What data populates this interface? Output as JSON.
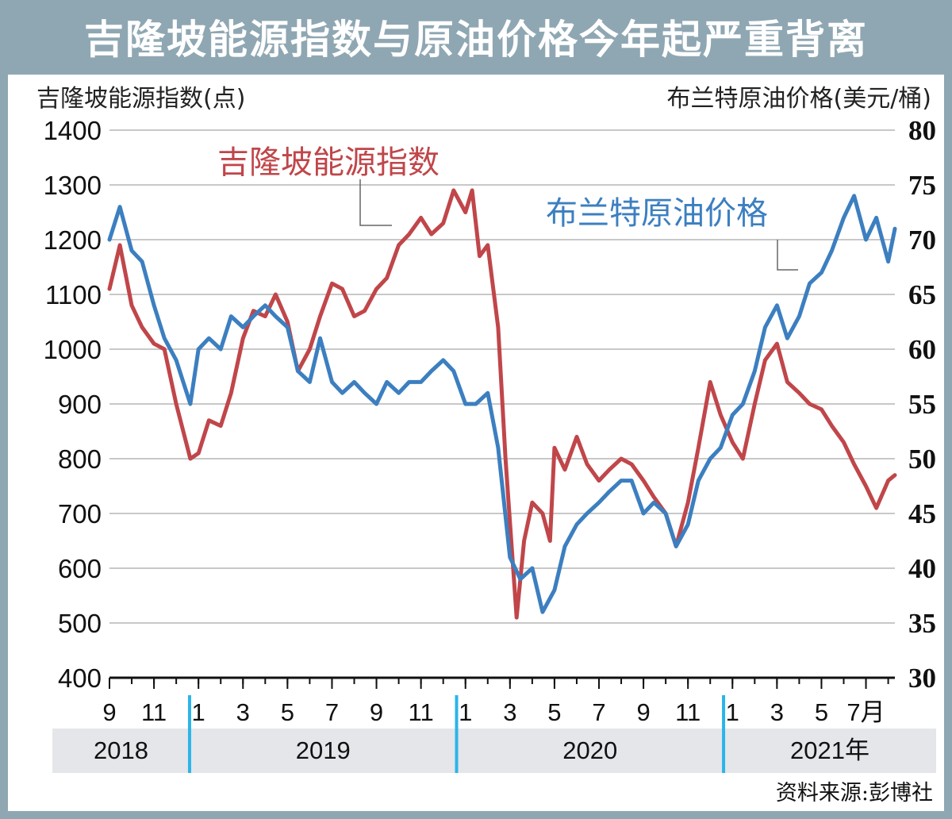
{
  "title": "吉隆坡能源指数与原油价格今年起严重背离",
  "colors": {
    "frame": "#8fa7b3",
    "energy_index": "#c0464a",
    "brent": "#3c7fc0",
    "year_band": "#e4e6ea",
    "year_divider": "#2bb5e8"
  },
  "chart_data": {
    "type": "line",
    "left_axis_label": "吉隆坡能源指数(点)",
    "right_axis_label": "布兰特原油价格(美元/桶)",
    "left_ticks": [
      "1400",
      "1300",
      "1200",
      "1100",
      "1000",
      "900",
      "800",
      "700",
      "600",
      "500",
      "400"
    ],
    "right_ticks": [
      "80",
      "75",
      "70",
      "65",
      "60",
      "55",
      "50",
      "45",
      "40",
      "35",
      "30"
    ],
    "ylim_left": [
      400,
      1400
    ],
    "ylim_right": [
      30,
      80
    ],
    "grid": true,
    "x_months": [
      "9",
      "11",
      "1",
      "3",
      "5",
      "7",
      "9",
      "11",
      "1",
      "3",
      "5",
      "7",
      "9",
      "11",
      "1",
      "3",
      "5",
      "7月"
    ],
    "years": [
      "2018",
      "2019",
      "2020",
      "2021年"
    ],
    "series": [
      {
        "name": "吉隆坡能源指数",
        "axis": "left",
        "points": [
          [
            "2018-09",
            1110
          ],
          [
            "2018-09-15",
            1190
          ],
          [
            "2018-10",
            1080
          ],
          [
            "2018-10-15",
            1040
          ],
          [
            "2018-11",
            1010
          ],
          [
            "2018-11-15",
            1000
          ],
          [
            "2018-12",
            900
          ],
          [
            "2018-12-20",
            800
          ],
          [
            "2019-01",
            810
          ],
          [
            "2019-01-15",
            870
          ],
          [
            "2019-02",
            860
          ],
          [
            "2019-02-15",
            920
          ],
          [
            "2019-03",
            1020
          ],
          [
            "2019-03-15",
            1070
          ],
          [
            "2019-04",
            1060
          ],
          [
            "2019-04-15",
            1100
          ],
          [
            "2019-05",
            1050
          ],
          [
            "2019-05-15",
            960
          ],
          [
            "2019-06",
            1000
          ],
          [
            "2019-06-15",
            1060
          ],
          [
            "2019-07",
            1120
          ],
          [
            "2019-07-15",
            1110
          ],
          [
            "2019-08",
            1060
          ],
          [
            "2019-08-15",
            1070
          ],
          [
            "2019-09",
            1110
          ],
          [
            "2019-09-15",
            1130
          ],
          [
            "2019-10",
            1190
          ],
          [
            "2019-10-15",
            1210
          ],
          [
            "2019-11",
            1240
          ],
          [
            "2019-11-15",
            1210
          ],
          [
            "2019-12",
            1230
          ],
          [
            "2019-12-15",
            1290
          ],
          [
            "2020-01",
            1250
          ],
          [
            "2020-01-10",
            1290
          ],
          [
            "2020-01-20",
            1170
          ],
          [
            "2020-02",
            1190
          ],
          [
            "2020-02-15",
            1040
          ],
          [
            "2020-02-25",
            800
          ],
          [
            "2020-03-10",
            510
          ],
          [
            "2020-03-20",
            650
          ],
          [
            "2020-04",
            720
          ],
          [
            "2020-04-15",
            700
          ],
          [
            "2020-04-25",
            650
          ],
          [
            "2020-05",
            820
          ],
          [
            "2020-05-15",
            780
          ],
          [
            "2020-06",
            840
          ],
          [
            "2020-06-15",
            790
          ],
          [
            "2020-07",
            760
          ],
          [
            "2020-07-15",
            780
          ],
          [
            "2020-08",
            800
          ],
          [
            "2020-08-15",
            790
          ],
          [
            "2020-09",
            760
          ],
          [
            "2020-09-15",
            730
          ],
          [
            "2020-10",
            700
          ],
          [
            "2020-10-15",
            640
          ],
          [
            "2020-11",
            720
          ],
          [
            "2020-11-15",
            820
          ],
          [
            "2020-12",
            940
          ],
          [
            "2020-12-15",
            880
          ],
          [
            "2021-01",
            830
          ],
          [
            "2021-01-15",
            800
          ],
          [
            "2021-02",
            900
          ],
          [
            "2021-02-15",
            980
          ],
          [
            "2021-03",
            1010
          ],
          [
            "2021-03-15",
            940
          ],
          [
            "2021-04",
            920
          ],
          [
            "2021-04-15",
            900
          ],
          [
            "2021-05",
            890
          ],
          [
            "2021-05-15",
            860
          ],
          [
            "2021-06",
            830
          ],
          [
            "2021-06-15",
            790
          ],
          [
            "2021-07",
            750
          ],
          [
            "2021-07-15",
            710
          ],
          [
            "2021-08",
            760
          ],
          [
            "2021-08-10",
            770
          ]
        ]
      },
      {
        "name": "布兰特原油价格",
        "axis": "right",
        "points": [
          [
            "2018-09",
            70
          ],
          [
            "2018-09-15",
            73
          ],
          [
            "2018-10",
            69
          ],
          [
            "2018-10-15",
            68
          ],
          [
            "2018-11",
            64
          ],
          [
            "2018-11-15",
            61
          ],
          [
            "2018-12",
            59
          ],
          [
            "2018-12-20",
            55
          ],
          [
            "2019-01",
            60
          ],
          [
            "2019-01-15",
            61
          ],
          [
            "2019-02",
            60
          ],
          [
            "2019-02-15",
            63
          ],
          [
            "2019-03",
            62
          ],
          [
            "2019-03-15",
            63
          ],
          [
            "2019-04",
            64
          ],
          [
            "2019-04-15",
            63
          ],
          [
            "2019-05",
            62
          ],
          [
            "2019-05-15",
            58
          ],
          [
            "2019-06",
            57
          ],
          [
            "2019-06-15",
            61
          ],
          [
            "2019-07",
            57
          ],
          [
            "2019-07-15",
            56
          ],
          [
            "2019-08",
            57
          ],
          [
            "2019-08-15",
            56
          ],
          [
            "2019-09",
            55
          ],
          [
            "2019-09-15",
            57
          ],
          [
            "2019-10",
            56
          ],
          [
            "2019-10-15",
            57
          ],
          [
            "2019-11",
            57
          ],
          [
            "2019-11-15",
            58
          ],
          [
            "2019-12",
            59
          ],
          [
            "2019-12-15",
            58
          ],
          [
            "2020-01",
            55
          ],
          [
            "2020-01-15",
            55
          ],
          [
            "2020-02",
            56
          ],
          [
            "2020-02-15",
            51
          ],
          [
            "2020-03",
            41
          ],
          [
            "2020-03-15",
            39
          ],
          [
            "2020-04",
            40
          ],
          [
            "2020-04-15",
            36
          ],
          [
            "2020-05",
            38
          ],
          [
            "2020-05-15",
            42
          ],
          [
            "2020-06",
            44
          ],
          [
            "2020-06-15",
            45
          ],
          [
            "2020-07",
            46
          ],
          [
            "2020-07-15",
            47
          ],
          [
            "2020-08",
            48
          ],
          [
            "2020-08-15",
            48
          ],
          [
            "2020-09",
            45
          ],
          [
            "2020-09-15",
            46
          ],
          [
            "2020-10",
            45
          ],
          [
            "2020-10-15",
            42
          ],
          [
            "2020-11",
            44
          ],
          [
            "2020-11-15",
            48
          ],
          [
            "2020-12",
            50
          ],
          [
            "2020-12-15",
            51
          ],
          [
            "2021-01",
            54
          ],
          [
            "2021-01-15",
            55
          ],
          [
            "2021-02",
            58
          ],
          [
            "2021-02-15",
            62
          ],
          [
            "2021-03",
            64
          ],
          [
            "2021-03-15",
            61
          ],
          [
            "2021-04",
            63
          ],
          [
            "2021-04-15",
            66
          ],
          [
            "2021-05",
            67
          ],
          [
            "2021-05-15",
            69
          ],
          [
            "2021-06",
            72
          ],
          [
            "2021-06-15",
            74
          ],
          [
            "2021-07",
            70
          ],
          [
            "2021-07-15",
            72
          ],
          [
            "2021-08",
            68
          ],
          [
            "2021-08-10",
            71
          ]
        ]
      }
    ]
  },
  "source": "资料来源:彭博社"
}
